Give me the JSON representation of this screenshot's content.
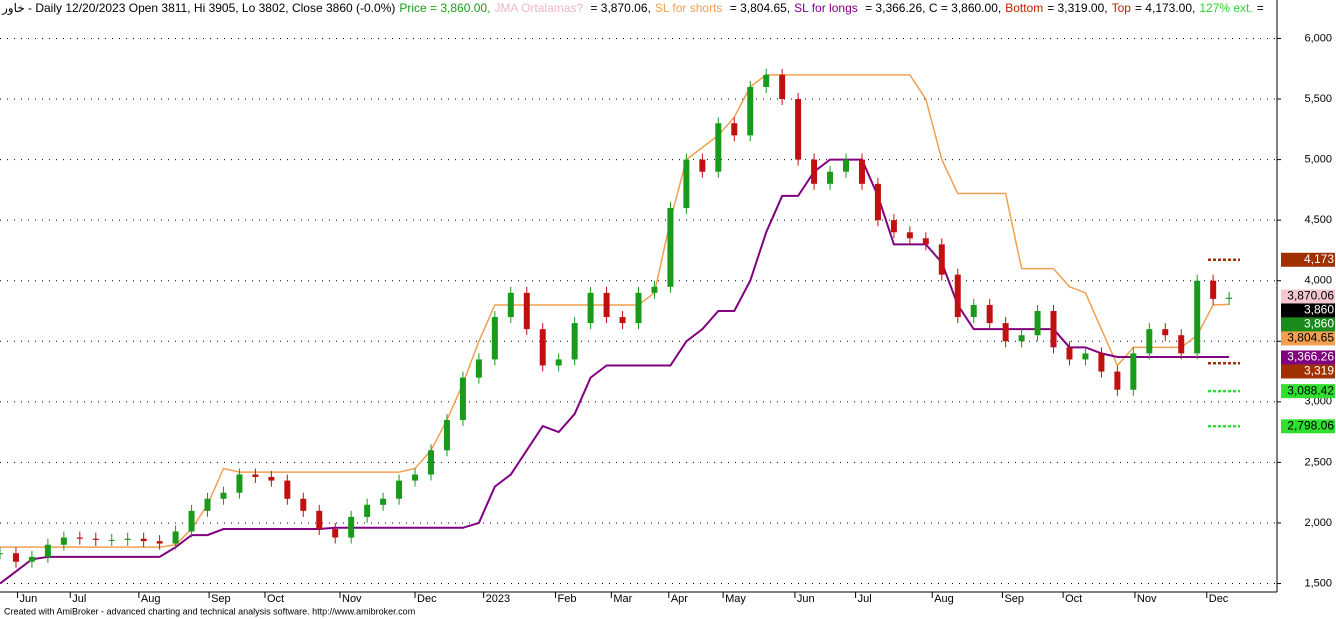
{
  "chart_data": {
    "type": "candlestick",
    "header": [
      {
        "text": "خاور - Daily 12/20/2023 Open 3811, Hi 3905, Lo 3802, Close 3860 (-0.0%)",
        "color": "#000000"
      },
      {
        "text": "Price = 3,860.00,",
        "color": "#1a9a1a"
      },
      {
        "text": "JMA Ortalamas? ",
        "color": "#f0b8c0"
      },
      {
        "text": "= 3,870.06,",
        "color": "#000000"
      },
      {
        "text": "SL for shorts ",
        "color": "#f0a050"
      },
      {
        "text": "= 3,804.65,",
        "color": "#000000"
      },
      {
        "text": "SL for longs ",
        "color": "#800080"
      },
      {
        "text": "= 3,366.26, C = 3,860.00,",
        "color": "#000000"
      },
      {
        "text": "Bottom",
        "color": "#c02000"
      },
      {
        "text": "= 3,319.00,",
        "color": "#000000"
      },
      {
        "text": "Top",
        "color": "#c02000"
      },
      {
        "text": "= 4,173.00,",
        "color": "#000000"
      },
      {
        "text": "127% ext.",
        "color": "#30d030"
      },
      {
        "text": "=",
        "color": "#000000"
      }
    ],
    "footer": "Created with AmiBroker - advanced charting and technical analysis software. http://www.amibroker.com",
    "up_color": "#1a9a1a",
    "down_color": "#c01010",
    "x": [
      0,
      1,
      2,
      3,
      4,
      5,
      6,
      7,
      8,
      9,
      10,
      11,
      12,
      13,
      14,
      15,
      16,
      17,
      18,
      19,
      20,
      21,
      22,
      23,
      24,
      25,
      26,
      27,
      28,
      29,
      30,
      31,
      32,
      33,
      34,
      35,
      36,
      37,
      38,
      39,
      40,
      41,
      42,
      43,
      44,
      45,
      46,
      47,
      48,
      49,
      50,
      51,
      52,
      53,
      54,
      55,
      56,
      57,
      58,
      59,
      60,
      61,
      62,
      63,
      64,
      65,
      66,
      67,
      68,
      69,
      70,
      71,
      72,
      73,
      74,
      75,
      76,
      77
    ],
    "series": [
      {
        "color": "#1a9a1a",
        "style": "candles",
        "values": [
          1750,
          1680,
          1720,
          1820,
          1880,
          1870,
          1860,
          1860,
          1870,
          1850,
          1830,
          1930,
          2100,
          2200,
          2250,
          2400,
          2380,
          2350,
          2200,
          2100,
          1950,
          1880,
          2050,
          2150,
          2200,
          2350,
          2400,
          2600,
          2850,
          3200,
          3350,
          3700,
          3900,
          3600,
          3300,
          3350,
          3650,
          3900,
          3700,
          3650,
          3900,
          3950,
          4600,
          5000,
          4900,
          5300,
          5200,
          5600,
          5700,
          5500,
          5000,
          4800,
          4900,
          5000,
          4800,
          4500,
          4400,
          4350,
          4300,
          4050,
          3700,
          3800,
          3650,
          3500,
          3550,
          3750,
          3450,
          3350,
          3400,
          3250,
          3100,
          3400,
          3600,
          3550,
          3400,
          4000,
          3850,
          3860
        ]
      },
      {
        "color": "#f0a050",
        "style": "line",
        "values": [
          1800,
          1800,
          1800,
          1800,
          1800,
          1800,
          1800,
          1800,
          1800,
          1800,
          1800,
          1820,
          1950,
          2150,
          2450,
          2420,
          2420,
          2420,
          2420,
          2420,
          2420,
          2420,
          2420,
          2420,
          2420,
          2420,
          2450,
          2600,
          2850,
          3150,
          3500,
          3800,
          3800,
          3800,
          3800,
          3800,
          3800,
          3800,
          3800,
          3800,
          3800,
          3900,
          4500,
          5000,
          5100,
          5200,
          5350,
          5600,
          5700,
          5700,
          5700,
          5700,
          5700,
          5700,
          5700,
          5700,
          5700,
          5700,
          5500,
          5000,
          4720,
          4720,
          4720,
          4720,
          4100,
          4100,
          4100,
          3950,
          3900,
          3600,
          3300,
          3450,
          3450,
          3450,
          3450,
          3550,
          3800,
          3805
        ]
      },
      {
        "color": "#800080",
        "style": "line",
        "values": [
          1500,
          1600,
          1700,
          1720,
          1720,
          1720,
          1720,
          1720,
          1720,
          1720,
          1720,
          1800,
          1900,
          1900,
          1950,
          1950,
          1950,
          1950,
          1950,
          1950,
          1950,
          1960,
          1960,
          1960,
          1960,
          1960,
          1960,
          1960,
          1960,
          1960,
          2000,
          2300,
          2400,
          2600,
          2800,
          2750,
          2900,
          3200,
          3300,
          3300,
          3300,
          3300,
          3300,
          3500,
          3600,
          3750,
          3750,
          4000,
          4400,
          4700,
          4700,
          4900,
          5000,
          5000,
          5000,
          4700,
          4300,
          4300,
          4300,
          4150,
          3800,
          3600,
          3600,
          3600,
          3600,
          3600,
          3600,
          3450,
          3450,
          3400,
          3370,
          3370,
          3370,
          3370,
          3370,
          3370,
          3370,
          3370
        ]
      }
    ],
    "levels": [
      {
        "value": 4173,
        "label": "4,173",
        "color": "#a03000",
        "text_color": "#ffffff",
        "dash": true
      },
      {
        "value": 3870.06,
        "label": "3,870.06",
        "color": "#f4c8d0",
        "text_color": "#000000",
        "dash": false
      },
      {
        "value": 3860,
        "label": "3,860",
        "color": "#000000",
        "text_color": "#ffffff",
        "dash": false
      },
      {
        "value": 3860,
        "label": "3,860",
        "color": "#1a8a1a",
        "text_color": "#ffffff",
        "dash": false
      },
      {
        "value": 3804.65,
        "label": "3,804.65",
        "color": "#f0a050",
        "text_color": "#000000",
        "dash": false
      },
      {
        "value": 3366.26,
        "label": "3,366.26",
        "color": "#800080",
        "text_color": "#ffffff",
        "dash": false
      },
      {
        "value": 3319,
        "label": "3,319",
        "color": "#a03000",
        "text_color": "#ffffff",
        "dash": true
      },
      {
        "value": 3088.42,
        "label": "3,088.42",
        "color": "#30e030",
        "text_color": "#000000",
        "dash": true
      },
      {
        "value": 2798.06,
        "label": "2,798.06",
        "color": "#30e030",
        "text_color": "#000000",
        "dash": true
      }
    ],
    "xlim": [
      0,
      80
    ],
    "xticks": [
      {
        "value": 1.1,
        "label": "Jun"
      },
      {
        "value": 4.4,
        "label": "Jul"
      },
      {
        "value": 8.7,
        "label": "Aug"
      },
      {
        "value": 13.1,
        "label": "Sep"
      },
      {
        "value": 16.6,
        "label": "Oct"
      },
      {
        "value": 21.3,
        "label": "Nov"
      },
      {
        "value": 26,
        "label": "Dec"
      },
      {
        "value": 30.3,
        "label": "2023"
      },
      {
        "value": 34.8,
        "label": "Feb"
      },
      {
        "value": 38.3,
        "label": "Mar"
      },
      {
        "value": 41.9,
        "label": "Apr"
      },
      {
        "value": 45.3,
        "label": "May"
      },
      {
        "value": 49.8,
        "label": "Jun"
      },
      {
        "value": 53.6,
        "label": "Jul"
      },
      {
        "value": 58.4,
        "label": "Aug"
      },
      {
        "value": 62.8,
        "label": "Sep"
      },
      {
        "value": 66.6,
        "label": "Oct"
      },
      {
        "value": 71.1,
        "label": "Nov"
      },
      {
        "value": 75.6,
        "label": "Dec"
      }
    ],
    "ylim": [
      1430,
      6070
    ],
    "yticks": [
      {
        "value": 1500,
        "label": "1,500"
      },
      {
        "value": 2000,
        "label": "2,000"
      },
      {
        "value": 2500,
        "label": "2,500"
      },
      {
        "value": 3000,
        "label": "3,000"
      },
      {
        "value": 3500,
        "label": "3,500"
      },
      {
        "value": 4000,
        "label": "4,000"
      },
      {
        "value": 4500,
        "label": "4,500"
      },
      {
        "value": 5000,
        "label": "5,000"
      },
      {
        "value": 5500,
        "label": "5,500"
      },
      {
        "value": 6000,
        "label": "6,000"
      }
    ],
    "grid": true
  }
}
